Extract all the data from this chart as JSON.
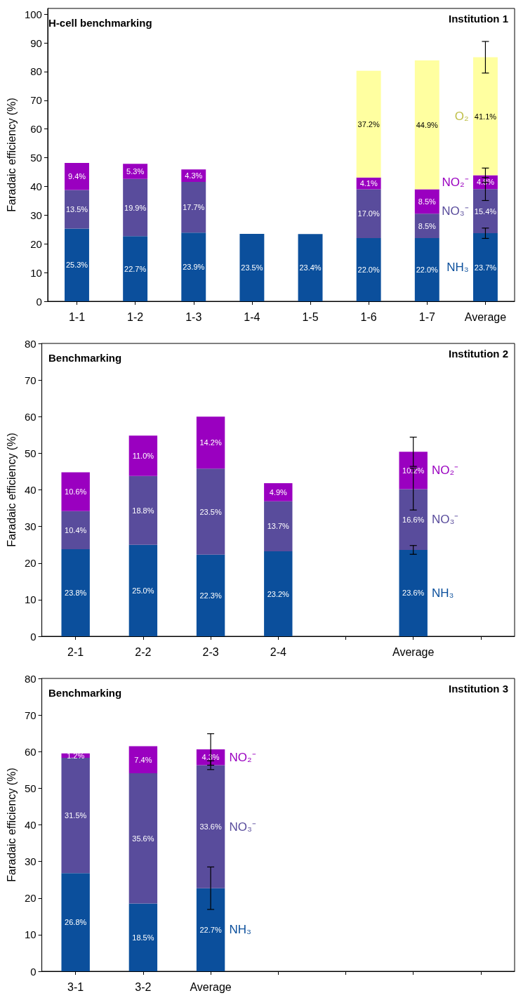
{
  "chart_data": [
    {
      "type": "bar",
      "title": "H-cell benchmarking",
      "subtitle": "Institution 1",
      "ylabel": "Faradaic efficiency (%)",
      "stacked": true,
      "ylim": [
        0,
        102
      ],
      "yticks": [
        0,
        10,
        20,
        30,
        40,
        50,
        60,
        70,
        80,
        90,
        100
      ],
      "categories": [
        "1-1",
        "1-2",
        "1-3",
        "1-4",
        "1-5",
        "1-6",
        "1-7",
        "Average"
      ],
      "series": [
        {
          "name": "NH₃",
          "color": "#0b4f9c",
          "values": [
            25.3,
            22.7,
            23.9,
            23.5,
            23.4,
            22.0,
            22.0,
            23.7
          ],
          "value_labels": [
            "25.3%",
            "22.7%",
            "23.9%",
            "23.5%",
            "23.4%",
            "22.0%",
            "22.0%",
            "23.7%"
          ],
          "errors": [
            null,
            null,
            null,
            null,
            null,
            null,
            null,
            1.8
          ]
        },
        {
          "name": "NO₃⁻",
          "color": "#594c9c",
          "values": [
            13.5,
            19.9,
            17.7,
            null,
            null,
            17.0,
            8.5,
            15.4
          ],
          "value_labels": [
            "13.5%",
            "19.9%",
            "17.7%",
            null,
            null,
            "17.0%",
            "8.5%",
            "15.4%"
          ],
          "errors": [
            null,
            null,
            null,
            null,
            null,
            null,
            null,
            4
          ]
        },
        {
          "name": "NO₂⁻",
          "color": "#9a00c0",
          "values": [
            9.4,
            5.3,
            4.3,
            null,
            null,
            4.1,
            8.5,
            4.8
          ],
          "value_labels": [
            "9.4%",
            "5.3%",
            "4.3%",
            null,
            null,
            "4.1%",
            "8.5%",
            "4.8%"
          ],
          "errors": [
            null,
            null,
            null,
            null,
            null,
            null,
            null,
            2.5
          ]
        },
        {
          "name": "O₂",
          "color": "#ffffa0",
          "values": [
            null,
            null,
            null,
            null,
            null,
            37.2,
            44.9,
            41.1
          ],
          "value_labels": [
            null,
            null,
            null,
            null,
            null,
            "37.2%",
            "44.9%",
            "41.1%"
          ],
          "errors": [
            null,
            null,
            null,
            null,
            null,
            null,
            null,
            5.5
          ]
        }
      ]
    },
    {
      "type": "bar",
      "title": "Benchmarking",
      "subtitle": "Institution 2",
      "ylabel": "Faradaic efficiency (%)",
      "stacked": true,
      "ylim": [
        0,
        80
      ],
      "yticks": [
        0,
        10,
        20,
        30,
        40,
        50,
        60,
        70,
        80
      ],
      "categories": [
        "2-1",
        "2-2",
        "2-3",
        "2-4",
        null,
        "Average",
        null
      ],
      "series": [
        {
          "name": "NH₃",
          "color": "#0b4f9c",
          "values": [
            23.8,
            25.0,
            22.3,
            23.2,
            null,
            23.6,
            null
          ],
          "value_labels": [
            "23.8%",
            "25.0%",
            "22.3%",
            "23.2%",
            null,
            "23.6%",
            null
          ],
          "errors": [
            null,
            null,
            null,
            null,
            null,
            1.2,
            null
          ]
        },
        {
          "name": "NO₃⁻",
          "color": "#594c9c",
          "values": [
            10.4,
            18.8,
            23.5,
            13.7,
            null,
            16.6,
            null
          ],
          "value_labels": [
            "10.4%",
            "18.8%",
            "23.5%",
            "13.7%",
            null,
            "16.6%",
            null
          ],
          "errors": [
            null,
            null,
            null,
            null,
            null,
            5.7,
            null
          ]
        },
        {
          "name": "NO₂⁻",
          "color": "#9a00c0",
          "values": [
            10.6,
            11.0,
            14.2,
            4.9,
            null,
            10.2,
            null
          ],
          "value_labels": [
            "10.6%",
            "11.0%",
            "14.2%",
            "4.9%",
            null,
            "10.2%",
            null
          ],
          "errors": [
            null,
            null,
            null,
            null,
            null,
            4,
            null
          ]
        }
      ]
    },
    {
      "type": "bar",
      "title": "Benchmarking",
      "subtitle": "Institution 3",
      "ylabel": "Faradaic efficiency (%)",
      "stacked": true,
      "ylim": [
        0,
        80
      ],
      "yticks": [
        0,
        10,
        20,
        30,
        40,
        50,
        60,
        70,
        80
      ],
      "categories": [
        "3-1",
        "3-2",
        "Average",
        null,
        null,
        null,
        null
      ],
      "series": [
        {
          "name": "NH₃",
          "color": "#0b4f9c",
          "values": [
            26.8,
            18.5,
            22.7,
            null,
            null,
            null,
            null
          ],
          "value_labels": [
            "26.8%",
            "18.5%",
            "22.7%",
            null,
            null,
            null,
            null
          ],
          "errors": [
            null,
            null,
            5.8,
            null,
            null,
            null,
            null
          ]
        },
        {
          "name": "NO₃⁻",
          "color": "#594c9c",
          "values": [
            31.5,
            35.6,
            33.6,
            null,
            null,
            null,
            null
          ],
          "value_labels": [
            "31.5%",
            "35.6%",
            "33.6%",
            null,
            null,
            null,
            null
          ],
          "errors": [
            null,
            null,
            1.2,
            null,
            null,
            null,
            null
          ]
        },
        {
          "name": "NO₂⁻",
          "color": "#9a00c0",
          "values": [
            1.2,
            7.4,
            4.3,
            null,
            null,
            null,
            null
          ],
          "value_labels": [
            "1.2%",
            "7.4%",
            "4.3%",
            null,
            null,
            null,
            null
          ],
          "errors": [
            null,
            null,
            4.3,
            null,
            null,
            null,
            null
          ]
        }
      ]
    }
  ]
}
